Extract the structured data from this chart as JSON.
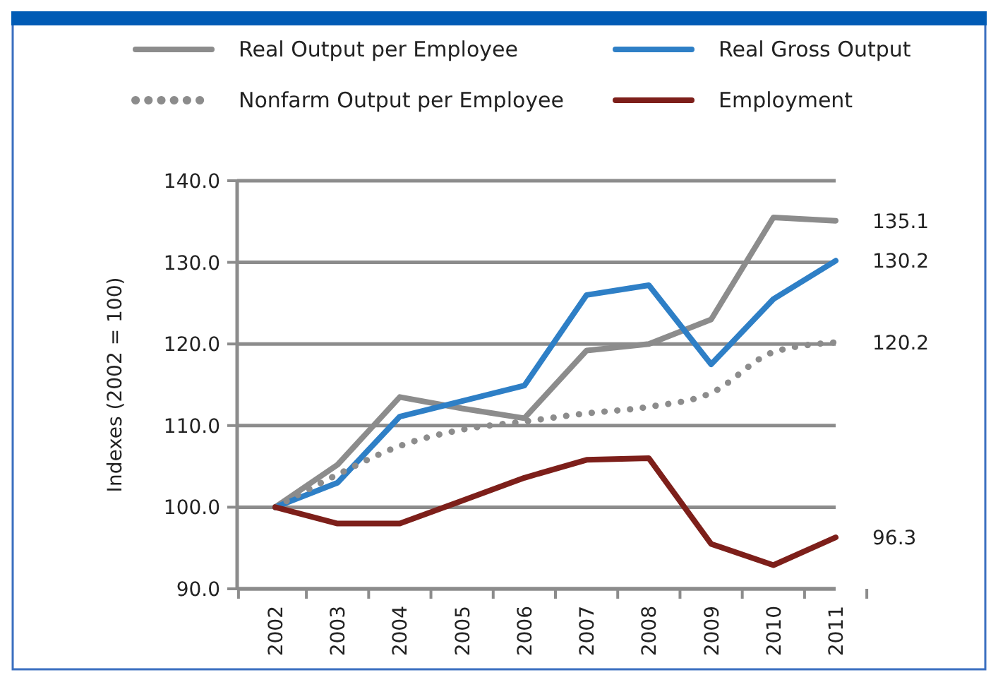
{
  "chart_data": {
    "type": "line",
    "ylabel": "Indexes (2002 = 100)",
    "categories": [
      "2002",
      "2003",
      "2004",
      "2005",
      "2006",
      "2007",
      "2008",
      "2009",
      "2010",
      "2011"
    ],
    "series": [
      {
        "name": "Real Output per Employee",
        "color": "#8c8c8c",
        "line_style": "solid",
        "values": [
          100,
          105.2,
          113.5,
          112.1,
          110.9,
          119.2,
          120.0,
          123.0,
          135.5,
          135.1
        ],
        "value_labels": [
          null,
          null,
          null,
          null,
          null,
          null,
          null,
          null,
          null,
          "135.1"
        ]
      },
      {
        "name": "Real Gross Output",
        "color": "#2e7fc6",
        "line_style": "solid",
        "values": [
          100,
          103.0,
          111.1,
          113.0,
          114.9,
          126.0,
          127.2,
          117.5,
          125.5,
          130.2
        ],
        "value_labels": [
          null,
          null,
          null,
          null,
          null,
          null,
          null,
          null,
          null,
          "130.2"
        ]
      },
      {
        "name": "Nonfarm Output per Employee",
        "color": "#8c8c8c",
        "line_style": "dotted",
        "values": [
          100,
          104.0,
          107.5,
          109.5,
          110.5,
          111.5,
          112.3,
          114.0,
          119.0,
          120.2
        ],
        "value_labels": [
          null,
          null,
          null,
          null,
          null,
          null,
          null,
          null,
          null,
          "120.2"
        ]
      },
      {
        "name": "Employment",
        "color": "#7d1f1a",
        "line_style": "solid",
        "values": [
          100,
          98.0,
          98.0,
          100.8,
          103.6,
          105.8,
          106.0,
          95.5,
          92.9,
          96.3
        ],
        "value_labels": [
          null,
          null,
          null,
          null,
          null,
          null,
          null,
          null,
          null,
          "96.3"
        ]
      }
    ],
    "ylim": [
      90,
      140
    ],
    "yticks": [
      {
        "value": 90,
        "label": "90.0"
      },
      {
        "value": 100,
        "label": "100.0"
      },
      {
        "value": 110,
        "label": "110.0"
      },
      {
        "value": 120,
        "label": "120.0"
      },
      {
        "value": 130,
        "label": "130.0"
      },
      {
        "value": 140,
        "label": "140.0"
      }
    ],
    "grid": "y",
    "legend": "top",
    "marker": "none"
  }
}
